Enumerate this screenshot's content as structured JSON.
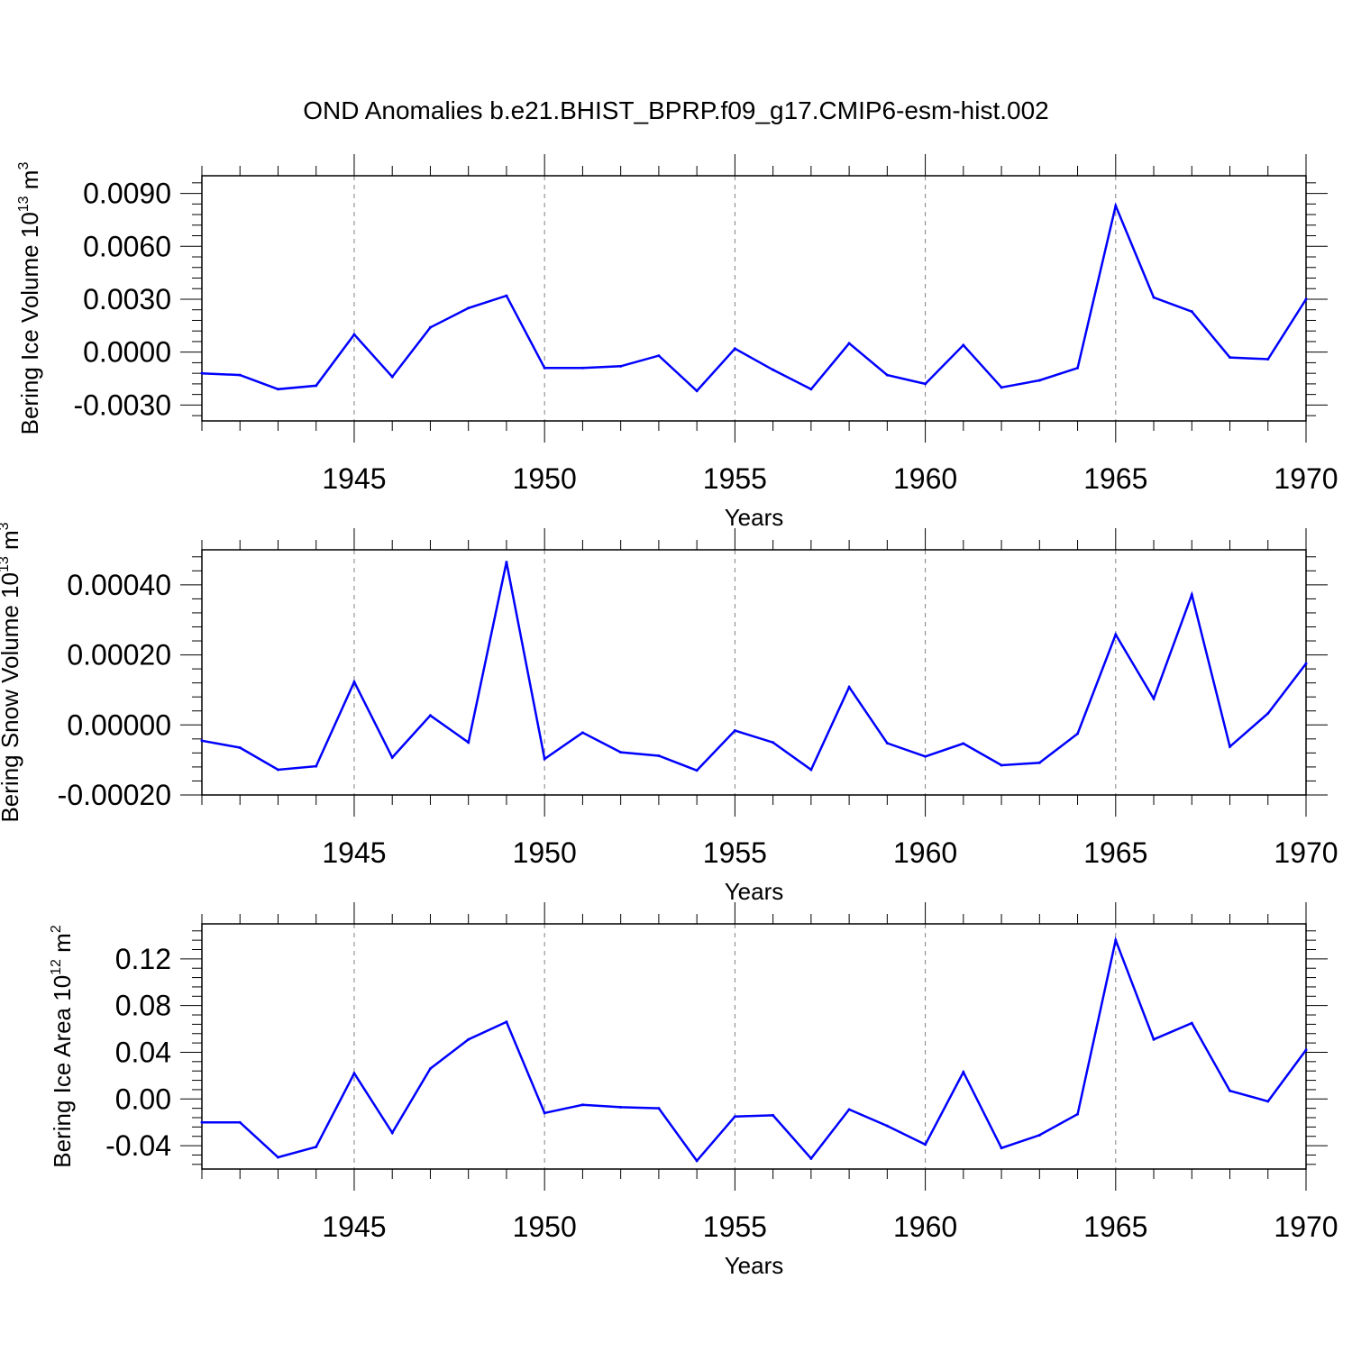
{
  "title": "OND Anomalies b.e21.BHIST_BPRP.f09_g17.CMIP6-esm-hist.002",
  "colors": {
    "line": "#0000ff",
    "axis": "#000000",
    "grid": "#808080"
  },
  "chart_data": [
    {
      "type": "line",
      "ylabel_main": "Bering Ice Volume 10",
      "ylabel_exp": "13",
      "ylabel_unit": "m",
      "ylabel_unit_exp": "3",
      "xlabel": "Years",
      "xlim": [
        1941,
        1970
      ],
      "ylim": [
        -0.0039,
        0.01
      ],
      "yticks": [
        -0.003,
        0.0,
        0.003,
        0.006,
        0.009
      ],
      "ytick_labels": [
        "-0.0030",
        "0.0000",
        "0.0030",
        "0.0060",
        "0.0090"
      ],
      "xticks": [
        1945,
        1950,
        1955,
        1960,
        1965,
        1970
      ],
      "xtick_labels": [
        "1945",
        "1950",
        "1955",
        "1960",
        "1965",
        "1970"
      ],
      "grid": "dashed vertical at major x ticks",
      "x": [
        1941,
        1942,
        1943,
        1944,
        1945,
        1946,
        1947,
        1948,
        1949,
        1950,
        1951,
        1952,
        1953,
        1954,
        1955,
        1956,
        1957,
        1958,
        1959,
        1960,
        1961,
        1962,
        1963,
        1964,
        1965,
        1966,
        1967,
        1968,
        1969,
        1970
      ],
      "values": [
        -0.0012,
        -0.0013,
        -0.0021,
        -0.0019,
        0.001,
        -0.0014,
        0.0014,
        0.0025,
        0.0032,
        -0.0009,
        -0.0009,
        -0.0008,
        -0.0002,
        -0.0022,
        0.0002,
        -0.001,
        -0.0021,
        0.0005,
        -0.0013,
        -0.0018,
        0.0004,
        -0.002,
        -0.0016,
        -0.0009,
        0.0083,
        0.0031,
        0.0023,
        -0.0003,
        -0.0004,
        0.003
      ]
    },
    {
      "type": "line",
      "ylabel_main": "Bering Snow Volume 10",
      "ylabel_exp": "13",
      "ylabel_unit": "m",
      "ylabel_unit_exp": "3",
      "xlabel": "Years",
      "xlim": [
        1941,
        1970
      ],
      "ylim": [
        -0.0002,
        0.0005
      ],
      "yticks": [
        -0.0002,
        0.0,
        0.0002,
        0.0004
      ],
      "ytick_labels": [
        "-0.00020",
        "0.00000",
        "0.00020",
        "0.00040"
      ],
      "xticks": [
        1945,
        1950,
        1955,
        1960,
        1965,
        1970
      ],
      "xtick_labels": [
        "1945",
        "1950",
        "1955",
        "1960",
        "1965",
        "1970"
      ],
      "grid": "dashed vertical at major x ticks",
      "x": [
        1941,
        1942,
        1943,
        1944,
        1945,
        1946,
        1947,
        1948,
        1949,
        1950,
        1951,
        1952,
        1953,
        1954,
        1955,
        1956,
        1957,
        1958,
        1959,
        1960,
        1961,
        1962,
        1963,
        1964,
        1965,
        1966,
        1967,
        1968,
        1969,
        1970
      ],
      "values": [
        -4.5e-05,
        -6.5e-05,
        -0.000128,
        -0.000118,
        0.000123,
        -9.3e-05,
        2.7e-05,
        -5e-05,
        0.000465,
        -9.7e-05,
        -2.2e-05,
        -7.8e-05,
        -8.8e-05,
        -0.00013,
        -1.6e-05,
        -5e-05,
        -0.000128,
        0.000108,
        -5.2e-05,
        -9e-05,
        -5.3e-05,
        -0.000115,
        -0.000108,
        -2.5e-05,
        0.000258,
        7.5e-05,
        0.000372,
        -6.2e-05,
        3.3e-05,
        0.000175
      ]
    },
    {
      "type": "line",
      "ylabel_main": "Bering Ice Area 10",
      "ylabel_exp": "12",
      "ylabel_unit": "m",
      "ylabel_unit_exp": "2",
      "xlabel": "Years",
      "xlim": [
        1941,
        1970
      ],
      "ylim": [
        -0.06,
        0.15
      ],
      "yticks": [
        -0.04,
        0.0,
        0.04,
        0.08,
        0.12
      ],
      "ytick_labels": [
        "-0.04",
        "0.00",
        "0.04",
        "0.08",
        "0.12"
      ],
      "xticks": [
        1945,
        1950,
        1955,
        1960,
        1965,
        1970
      ],
      "xtick_labels": [
        "1945",
        "1950",
        "1955",
        "1960",
        "1965",
        "1970"
      ],
      "grid": "dashed vertical at major x ticks",
      "x": [
        1941,
        1942,
        1943,
        1944,
        1945,
        1946,
        1947,
        1948,
        1949,
        1950,
        1951,
        1952,
        1953,
        1954,
        1955,
        1956,
        1957,
        1958,
        1959,
        1960,
        1961,
        1962,
        1963,
        1964,
        1965,
        1966,
        1967,
        1968,
        1969,
        1970
      ],
      "values": [
        -0.02,
        -0.02,
        -0.05,
        -0.041,
        0.022,
        -0.029,
        0.026,
        0.051,
        0.066,
        -0.012,
        -0.005,
        -0.007,
        -0.008,
        -0.053,
        -0.015,
        -0.014,
        -0.051,
        -0.009,
        -0.023,
        -0.039,
        0.023,
        -0.042,
        -0.031,
        -0.013,
        0.136,
        0.051,
        0.065,
        0.007,
        -0.002,
        0.042
      ]
    }
  ]
}
